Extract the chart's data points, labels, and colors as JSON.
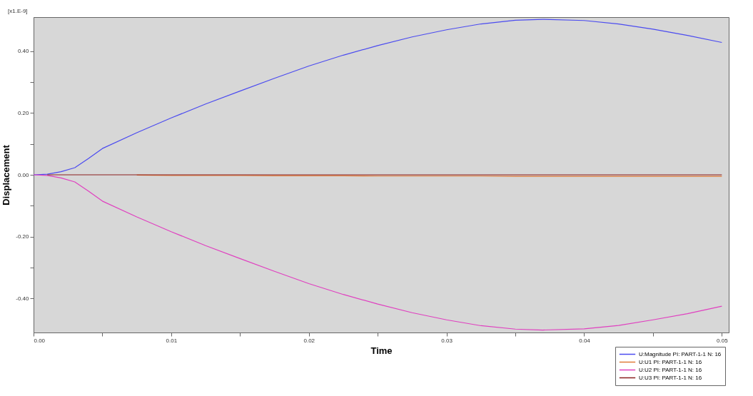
{
  "chart_data": {
    "type": "line",
    "xlabel": "Time",
    "ylabel": "Displacement",
    "annotations": [
      "[x1.E-9]"
    ],
    "x": [
      0,
      0.001,
      0.002,
      0.003,
      0.004,
      0.005,
      0.0075,
      0.01,
      0.0125,
      0.015,
      0.0175,
      0.02,
      0.0225,
      0.025,
      0.0275,
      0.03,
      0.0325,
      0.035,
      0.037,
      0.04,
      0.0425,
      0.045,
      0.0475,
      0.05
    ],
    "series": [
      {
        "name": "U:Magnitude PI: PART-1-1 N: 16",
        "color": "#4b4bf0",
        "values": [
          0,
          0.002,
          0.01,
          0.023,
          0.053,
          0.085,
          0.136,
          0.184,
          0.229,
          0.271,
          0.312,
          0.352,
          0.387,
          0.418,
          0.446,
          0.469,
          0.488,
          0.5,
          0.503,
          0.499,
          0.488,
          0.471,
          0.451,
          0.428
        ]
      },
      {
        "name": "U:U1 PI: PART-1-1 N: 16",
        "color": "#e07b39",
        "values": [
          null,
          null,
          null,
          null,
          null,
          null,
          -0.001,
          -0.002,
          -0.002,
          -0.002,
          -0.003,
          -0.003,
          -0.003,
          -0.004,
          -0.004,
          -0.004,
          -0.004,
          -0.005,
          -0.005,
          -0.005,
          -0.005,
          -0.005,
          -0.005,
          -0.005
        ]
      },
      {
        "name": "U:U2 PI: PART-1-1 N: 16",
        "color": "#e040c0",
        "values": [
          0,
          -0.002,
          -0.01,
          -0.023,
          -0.053,
          -0.085,
          -0.136,
          -0.184,
          -0.229,
          -0.271,
          -0.312,
          -0.352,
          -0.387,
          -0.418,
          -0.446,
          -0.469,
          -0.488,
          -0.499,
          -0.502,
          -0.498,
          -0.487,
          -0.469,
          -0.449,
          -0.425
        ]
      },
      {
        "name": "U:U3 PI: PART-1-1 N: 16",
        "color": "#8b2020",
        "values": [
          null,
          0,
          0,
          0,
          0,
          0,
          0,
          0,
          0,
          0,
          0,
          0,
          0,
          0,
          0,
          0,
          0,
          0,
          0,
          0,
          0,
          0,
          0,
          0
        ]
      }
    ],
    "xlim": [
      0,
      0.0505
    ],
    "ylim": [
      -0.51,
      0.51
    ],
    "xticks": [
      {
        "value": 0,
        "label": "0.00"
      },
      {
        "value": 0.005,
        "label": null
      },
      {
        "value": 0.01,
        "label": "0.01"
      },
      {
        "value": 0.015,
        "label": null
      },
      {
        "value": 0.02,
        "label": "0.02"
      },
      {
        "value": 0.025,
        "label": null
      },
      {
        "value": 0.03,
        "label": "0.03"
      },
      {
        "value": 0.035,
        "label": null
      },
      {
        "value": 0.04,
        "label": "0.04"
      },
      {
        "value": 0.045,
        "label": null
      },
      {
        "value": 0.05,
        "label": "0.05"
      }
    ],
    "yticks": [
      {
        "value": -0.4,
        "label": "-0.40"
      },
      {
        "value": -0.3,
        "label": null
      },
      {
        "value": -0.2,
        "label": "-0.20"
      },
      {
        "value": -0.1,
        "label": null
      },
      {
        "value": 0,
        "label": "0.00"
      },
      {
        "value": 0.1,
        "label": null
      },
      {
        "value": 0.2,
        "label": "0.20"
      },
      {
        "value": 0.3,
        "label": null
      },
      {
        "value": 0.4,
        "label": "0.40"
      }
    ],
    "grid": false,
    "legend": "bottom right",
    "line_style": "solid",
    "marker": "none"
  }
}
